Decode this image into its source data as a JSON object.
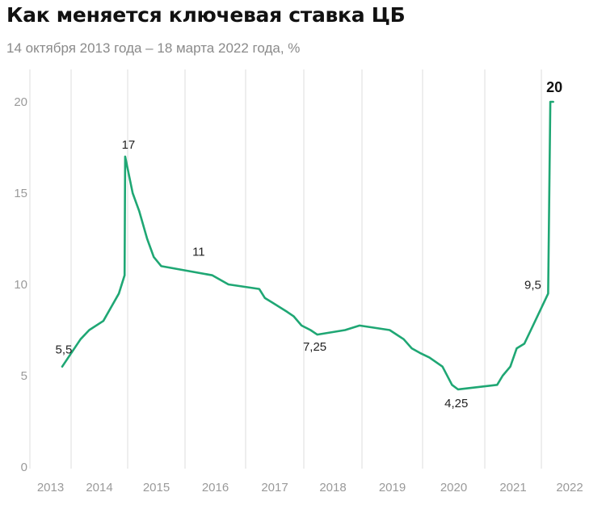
{
  "header": {
    "title": "Как меняется ключевая ставка ЦБ",
    "subtitle": "14 октября 2013 года – 18 марта 2022 года, %"
  },
  "colors": {
    "line": "#1fa774",
    "grid": "#dddddd",
    "tick": "#9a9a9a"
  },
  "chart_data": {
    "type": "line",
    "title": "Как меняется ключевая ставка ЦБ",
    "subtitle": "14 октября 2013 года – 18 марта 2022 года, %",
    "xlabel": "",
    "ylabel": "",
    "x_ticks": [
      "2013",
      "2014",
      "2015",
      "2016",
      "2017",
      "2018",
      "2019",
      "2020",
      "2021",
      "2022"
    ],
    "y_ticks": [
      0,
      5,
      10,
      15,
      20
    ],
    "ylim": [
      0,
      22
    ],
    "grid": "vertical",
    "series": [
      {
        "color": "#1fa774",
        "points": [
          [
            "2013-10-14",
            5.5
          ],
          [
            "2014-03-03",
            7.0
          ],
          [
            "2014-04-28",
            7.5
          ],
          [
            "2014-07-28",
            8.0
          ],
          [
            "2014-11-05",
            9.5
          ],
          [
            "2014-12-12",
            10.5
          ],
          [
            "2014-12-16",
            17.0
          ],
          [
            "2015-02-02",
            15.0
          ],
          [
            "2015-03-16",
            14.0
          ],
          [
            "2015-05-05",
            12.5
          ],
          [
            "2015-06-16",
            11.5
          ],
          [
            "2015-08-03",
            11.0
          ],
          [
            "2016-06-14",
            10.5
          ],
          [
            "2016-09-19",
            10.0
          ],
          [
            "2017-03-27",
            9.75
          ],
          [
            "2017-05-02",
            9.25
          ],
          [
            "2017-06-19",
            9.0
          ],
          [
            "2017-09-18",
            8.5
          ],
          [
            "2017-10-30",
            8.25
          ],
          [
            "2017-12-18",
            7.75
          ],
          [
            "2018-02-12",
            7.5
          ],
          [
            "2018-03-26",
            7.25
          ],
          [
            "2018-09-17",
            7.5
          ],
          [
            "2018-12-17",
            7.75
          ],
          [
            "2019-06-17",
            7.5
          ],
          [
            "2019-07-29",
            7.25
          ],
          [
            "2019-09-09",
            7.0
          ],
          [
            "2019-10-28",
            6.5
          ],
          [
            "2019-12-16",
            6.25
          ],
          [
            "2020-02-10",
            6.0
          ],
          [
            "2020-04-27",
            5.5
          ],
          [
            "2020-06-22",
            4.5
          ],
          [
            "2020-07-27",
            4.25
          ],
          [
            "2021-03-22",
            4.5
          ],
          [
            "2021-04-26",
            5.0
          ],
          [
            "2021-06-15",
            5.5
          ],
          [
            "2021-07-26",
            6.5
          ],
          [
            "2021-09-13",
            6.75
          ],
          [
            "2021-10-25",
            7.5
          ],
          [
            "2021-12-20",
            8.5
          ],
          [
            "2022-02-14",
            9.5
          ],
          [
            "2022-02-28",
            20.0
          ],
          [
            "2022-03-18",
            20.0
          ]
        ]
      }
    ],
    "annotations": [
      {
        "label": "5,5",
        "x": "2013-10-14",
        "y": 5.5,
        "bold": false
      },
      {
        "label": "17",
        "x": "2014-12-16",
        "y": 17.0,
        "bold": false
      },
      {
        "label": "11",
        "x": "2016-01-15",
        "y": 11.0,
        "bold": false
      },
      {
        "label": "7,25",
        "x": "2018-03-26",
        "y": 7.25,
        "bold": false
      },
      {
        "label": "4,25",
        "x": "2020-07-27",
        "y": 4.25,
        "bold": false
      },
      {
        "label": "9,5",
        "x": "2022-02-14",
        "y": 9.5,
        "bold": false
      },
      {
        "label": "20",
        "x": "2022-02-28",
        "y": 20.0,
        "bold": true
      }
    ]
  }
}
